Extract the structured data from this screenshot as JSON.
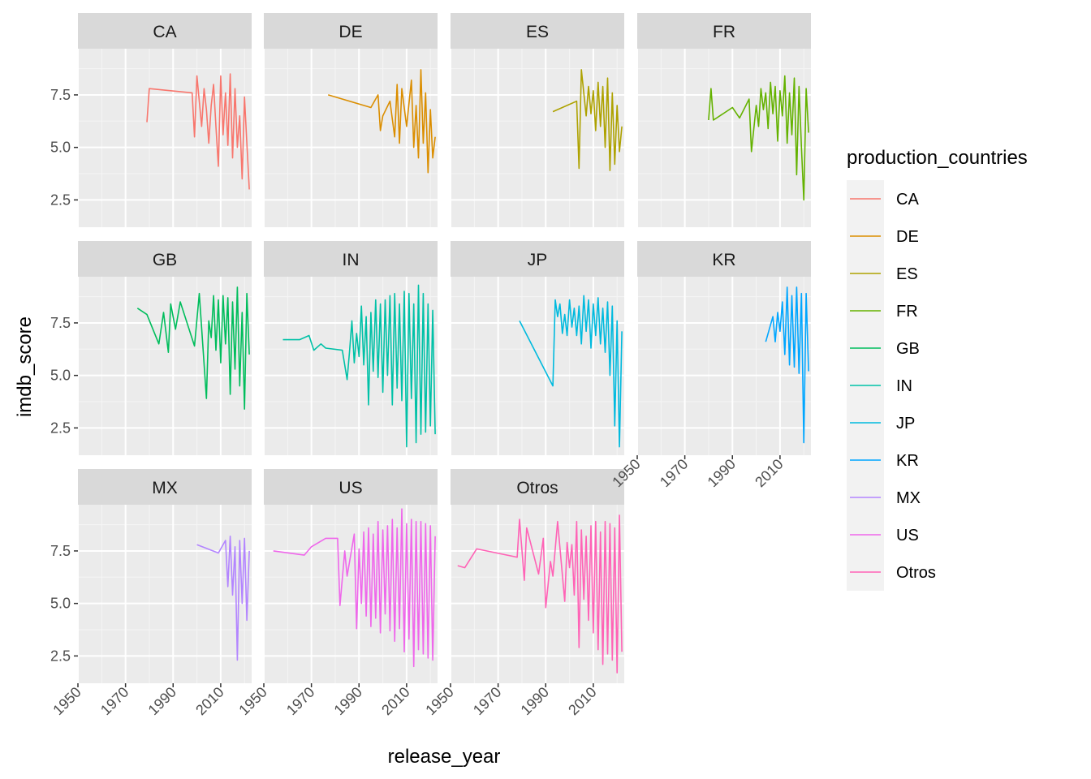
{
  "chart_data": {
    "type": "line",
    "subtype": "faceted",
    "xlabel": "release_year",
    "ylabel": "imdb_score",
    "xlim": [
      1950,
      2023
    ],
    "ylim": [
      1.2,
      9.7
    ],
    "x_ticks": [
      "1950",
      "1970",
      "1990",
      "2010"
    ],
    "x_tick_values": [
      1950,
      1970,
      1990,
      2010
    ],
    "y_ticks": [
      "2.5",
      "5.0",
      "7.5"
    ],
    "y_tick_values": [
      2.5,
      5.0,
      7.5
    ],
    "grid": true,
    "legend": {
      "title": "production_countries",
      "position": "right",
      "entries": [
        "CA",
        "DE",
        "ES",
        "FR",
        "GB",
        "IN",
        "JP",
        "KR",
        "MX",
        "US",
        "Otros"
      ]
    },
    "series": [
      {
        "name": "CA",
        "color": "#F8766D",
        "x": [
          1979,
          1980,
          1998,
          1999,
          2000,
          2002,
          2003,
          2004,
          2005,
          2006,
          2007,
          2008,
          2009,
          2010,
          2011,
          2012,
          2013,
          2014,
          2015,
          2016,
          2017,
          2018,
          2019,
          2020,
          2021,
          2022
        ],
        "y": [
          6.2,
          7.8,
          7.6,
          5.5,
          8.4,
          6.0,
          7.8,
          6.8,
          5.2,
          7.0,
          8.0,
          6.0,
          4.1,
          8.4,
          5.6,
          7.6,
          5.1,
          8.5,
          4.5,
          7.8,
          5.0,
          6.5,
          3.5,
          7.4,
          5.2,
          3.0
        ]
      },
      {
        "name": "DE",
        "color": "#DB8E00",
        "x": [
          1977,
          1995,
          1998,
          1999,
          2000,
          2003,
          2005,
          2006,
          2007,
          2008,
          2010,
          2012,
          2013,
          2014,
          2015,
          2016,
          2017,
          2018,
          2019,
          2020,
          2021,
          2022
        ],
        "y": [
          7.5,
          6.9,
          7.5,
          5.8,
          6.5,
          7.2,
          5.5,
          8.0,
          5.2,
          7.8,
          6.0,
          8.2,
          5.0,
          7.0,
          4.5,
          8.7,
          5.2,
          7.6,
          3.8,
          6.8,
          4.5,
          5.5
        ]
      },
      {
        "name": "ES",
        "color": "#AEA200",
        "x": [
          1993,
          2003,
          2004,
          2005,
          2007,
          2008,
          2009,
          2010,
          2011,
          2012,
          2013,
          2014,
          2015,
          2016,
          2017,
          2018,
          2019,
          2020,
          2021,
          2022
        ],
        "y": [
          6.7,
          7.2,
          4.0,
          8.7,
          6.5,
          7.9,
          6.6,
          7.7,
          5.8,
          8.1,
          6.0,
          7.9,
          5.0,
          8.3,
          3.9,
          7.6,
          4.2,
          7.0,
          4.8,
          6.0
        ]
      },
      {
        "name": "FR",
        "color": "#64B200",
        "x": [
          1980,
          1981,
          1982,
          1990,
          1993,
          1997,
          1998,
          2000,
          2001,
          2002,
          2003,
          2004,
          2005,
          2006,
          2007,
          2008,
          2009,
          2010,
          2011,
          2012,
          2013,
          2014,
          2015,
          2016,
          2017,
          2018,
          2019,
          2020,
          2021,
          2022
        ],
        "y": [
          6.3,
          7.8,
          6.3,
          6.9,
          6.4,
          7.3,
          4.8,
          7.0,
          6.0,
          7.8,
          6.8,
          7.6,
          5.9,
          8.1,
          6.6,
          7.9,
          5.3,
          7.7,
          6.5,
          8.4,
          5.2,
          7.6,
          5.6,
          8.3,
          3.7,
          7.9,
          5.0,
          2.5,
          7.8,
          5.7
        ]
      },
      {
        "name": "GB",
        "color": "#00BD5C",
        "x": [
          1975,
          1979,
          1984,
          1986,
          1988,
          1989,
          1991,
          1993,
          1999,
          2001,
          2004,
          2005,
          2006,
          2007,
          2008,
          2009,
          2010,
          2011,
          2012,
          2013,
          2014,
          2015,
          2016,
          2017,
          2018,
          2019,
          2020,
          2021,
          2022
        ],
        "y": [
          8.2,
          7.9,
          6.5,
          8.0,
          6.1,
          8.4,
          7.2,
          8.5,
          6.4,
          8.9,
          3.9,
          7.6,
          6.8,
          8.8,
          6.2,
          8.6,
          5.6,
          8.8,
          6.5,
          8.7,
          4.1,
          8.5,
          5.3,
          9.2,
          4.5,
          8.0,
          3.4,
          8.9,
          6.0
        ]
      },
      {
        "name": "IN",
        "color": "#00C1A7",
        "x": [
          1958,
          1965,
          1969,
          1971,
          1974,
          1976,
          1983,
          1985,
          1986,
          1987,
          1988,
          1989,
          1990,
          1991,
          1992,
          1993,
          1994,
          1995,
          1996,
          1997,
          1998,
          1999,
          2000,
          2001,
          2002,
          2003,
          2004,
          2005,
          2006,
          2007,
          2008,
          2009,
          2010,
          2011,
          2012,
          2013,
          2014,
          2015,
          2016,
          2017,
          2018,
          2019,
          2020,
          2021,
          2022
        ],
        "y": [
          6.7,
          6.7,
          6.9,
          6.2,
          6.5,
          6.3,
          6.2,
          4.8,
          6.1,
          7.6,
          5.6,
          7.0,
          5.9,
          8.3,
          5.5,
          7.8,
          3.6,
          8.0,
          5.2,
          8.6,
          4.9,
          8.4,
          4.2,
          8.6,
          5.0,
          8.8,
          3.6,
          8.9,
          4.4,
          8.4,
          3.8,
          9.0,
          1.6,
          8.9,
          3.9,
          8.4,
          1.8,
          9.3,
          2.2,
          8.9,
          2.3,
          8.4,
          2.6,
          8.1,
          2.2
        ]
      },
      {
        "name": "JP",
        "color": "#00BADE",
        "x": [
          1979,
          1993,
          1994,
          1995,
          1996,
          1997,
          1998,
          1999,
          2000,
          2001,
          2002,
          2003,
          2004,
          2005,
          2006,
          2007,
          2008,
          2009,
          2010,
          2011,
          2012,
          2013,
          2014,
          2015,
          2016,
          2017,
          2018,
          2019,
          2020,
          2021,
          2022
        ],
        "y": [
          7.6,
          4.5,
          8.6,
          7.8,
          8.4,
          7.0,
          7.9,
          6.9,
          8.6,
          7.3,
          8.2,
          6.9,
          8.3,
          6.5,
          8.8,
          7.1,
          8.6,
          6.3,
          8.4,
          6.9,
          8.7,
          6.5,
          8.2,
          6.1,
          8.5,
          5.0,
          8.3,
          2.6,
          7.6,
          1.6,
          7.1
        ]
      },
      {
        "name": "KR",
        "color": "#00A6FF",
        "x": [
          2004,
          2007,
          2008,
          2009,
          2010,
          2011,
          2012,
          2013,
          2014,
          2015,
          2016,
          2017,
          2018,
          2019,
          2020,
          2021,
          2022
        ],
        "y": [
          6.6,
          7.8,
          6.6,
          8.0,
          7.1,
          8.5,
          6.0,
          9.2,
          5.5,
          8.8,
          5.4,
          9.2,
          5.1,
          8.9,
          1.8,
          8.9,
          5.2
        ]
      },
      {
        "name": "MX",
        "color": "#B385FF",
        "x": [
          2000,
          2009,
          2012,
          2013,
          2014,
          2015,
          2016,
          2017,
          2018,
          2019,
          2020,
          2021,
          2022
        ],
        "y": [
          7.8,
          7.4,
          8.0,
          5.8,
          8.2,
          5.4,
          7.7,
          2.3,
          8.0,
          5.0,
          8.1,
          4.2,
          7.5
        ]
      },
      {
        "name": "US",
        "color": "#EF67EB",
        "x": [
          1954,
          1967,
          1970,
          1976,
          1981,
          1982,
          1984,
          1985,
          1988,
          1989,
          1990,
          1991,
          1992,
          1993,
          1994,
          1995,
          1996,
          1997,
          1998,
          1999,
          2000,
          2001,
          2002,
          2003,
          2004,
          2005,
          2006,
          2007,
          2008,
          2009,
          2010,
          2011,
          2012,
          2013,
          2014,
          2015,
          2016,
          2017,
          2018,
          2019,
          2020,
          2021,
          2022
        ],
        "y": [
          7.5,
          7.3,
          7.7,
          8.1,
          8.1,
          4.9,
          7.5,
          6.3,
          8.3,
          3.8,
          7.6,
          5.0,
          8.4,
          4.4,
          8.6,
          3.9,
          8.3,
          4.3,
          8.9,
          3.6,
          8.5,
          4.5,
          8.7,
          3.7,
          9.0,
          3.2,
          8.6,
          3.8,
          9.5,
          2.7,
          8.8,
          3.3,
          9.0,
          2.0,
          8.9,
          2.8,
          8.9,
          2.6,
          8.8,
          2.4,
          8.7,
          2.3,
          8.2
        ]
      },
      {
        "name": "Otros",
        "color": "#FF63B6",
        "x": [
          1953,
          1956,
          1961,
          1978,
          1979,
          1981,
          1982,
          1987,
          1989,
          1990,
          1992,
          1993,
          1995,
          1998,
          1999,
          2000,
          2001,
          2002,
          2003,
          2004,
          2005,
          2006,
          2007,
          2008,
          2009,
          2010,
          2011,
          2012,
          2013,
          2014,
          2015,
          2016,
          2017,
          2018,
          2019,
          2020,
          2021,
          2022
        ],
        "y": [
          6.8,
          6.7,
          7.6,
          7.2,
          9.0,
          6.1,
          8.6,
          6.4,
          8.1,
          4.8,
          7.0,
          6.3,
          8.9,
          5.1,
          7.9,
          6.7,
          7.8,
          5.4,
          8.9,
          2.9,
          8.5,
          5.2,
          8.2,
          4.2,
          8.7,
          3.6,
          8.9,
          2.8,
          8.4,
          2.1,
          8.9,
          2.6,
          8.8,
          2.3,
          8.6,
          1.7,
          9.2,
          2.7
        ]
      }
    ]
  }
}
